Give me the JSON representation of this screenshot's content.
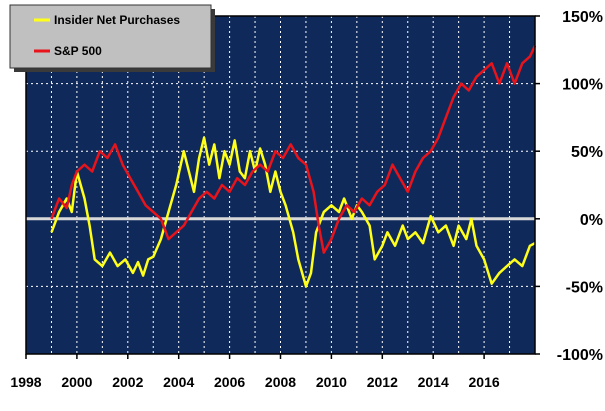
{
  "chart_data": {
    "type": "line",
    "title": "",
    "xlabel": "",
    "ylabel": "",
    "xlim": [
      1998,
      2018
    ],
    "ylim": [
      -100,
      150
    ],
    "x_ticks": [
      {
        "value": 1998,
        "label": "1998"
      },
      {
        "value": 2000,
        "label": "2000"
      },
      {
        "value": 2002,
        "label": "2002"
      },
      {
        "value": 2004,
        "label": "2004"
      },
      {
        "value": 2006,
        "label": "2006"
      },
      {
        "value": 2008,
        "label": "2008"
      },
      {
        "value": 2010,
        "label": "2010"
      },
      {
        "value": 2012,
        "label": "2012"
      },
      {
        "value": 2014,
        "label": "2014"
      },
      {
        "value": 2016,
        "label": "2016"
      }
    ],
    "y_ticks": [
      {
        "value": 150,
        "label": "150%"
      },
      {
        "value": 100,
        "label": "100%"
      },
      {
        "value": 50,
        "label": "50%"
      },
      {
        "value": 0,
        "label": "0%"
      },
      {
        "value": -50,
        "label": "-50%"
      },
      {
        "value": -100,
        "label": "-100%"
      }
    ],
    "grid": true,
    "legend_position": "top-left",
    "series": [
      {
        "name": "Insider Net Purchases",
        "color": "#ffff1a",
        "points": [
          [
            1999.0,
            -10
          ],
          [
            1999.3,
            5
          ],
          [
            1999.6,
            15
          ],
          [
            1999.8,
            5
          ],
          [
            2000.0,
            35
          ],
          [
            2000.3,
            15
          ],
          [
            2000.5,
            -5
          ],
          [
            2000.7,
            -30
          ],
          [
            2001.0,
            -35
          ],
          [
            2001.3,
            -25
          ],
          [
            2001.6,
            -35
          ],
          [
            2001.9,
            -30
          ],
          [
            2002.2,
            -40
          ],
          [
            2002.4,
            -32
          ],
          [
            2002.6,
            -42
          ],
          [
            2002.8,
            -30
          ],
          [
            2003.0,
            -28
          ],
          [
            2003.3,
            -15
          ],
          [
            2003.6,
            5
          ],
          [
            2003.9,
            25
          ],
          [
            2004.2,
            50
          ],
          [
            2004.4,
            35
          ],
          [
            2004.6,
            20
          ],
          [
            2004.8,
            45
          ],
          [
            2005.0,
            60
          ],
          [
            2005.2,
            40
          ],
          [
            2005.4,
            55
          ],
          [
            2005.6,
            30
          ],
          [
            2005.8,
            50
          ],
          [
            2006.0,
            40
          ],
          [
            2006.2,
            58
          ],
          [
            2006.4,
            35
          ],
          [
            2006.6,
            30
          ],
          [
            2006.8,
            50
          ],
          [
            2007.0,
            35
          ],
          [
            2007.2,
            52
          ],
          [
            2007.4,
            40
          ],
          [
            2007.6,
            20
          ],
          [
            2007.8,
            35
          ],
          [
            2008.0,
            20
          ],
          [
            2008.2,
            10
          ],
          [
            2008.5,
            -10
          ],
          [
            2008.7,
            -30
          ],
          [
            2009.0,
            -50
          ],
          [
            2009.2,
            -40
          ],
          [
            2009.4,
            -10
          ],
          [
            2009.7,
            5
          ],
          [
            2010.0,
            10
          ],
          [
            2010.3,
            5
          ],
          [
            2010.5,
            15
          ],
          [
            2010.8,
            0
          ],
          [
            2011.0,
            10
          ],
          [
            2011.2,
            5
          ],
          [
            2011.5,
            -5
          ],
          [
            2011.7,
            -30
          ],
          [
            2012.0,
            -20
          ],
          [
            2012.2,
            -10
          ],
          [
            2012.5,
            -20
          ],
          [
            2012.8,
            -5
          ],
          [
            2013.0,
            -15
          ],
          [
            2013.3,
            -10
          ],
          [
            2013.6,
            -18
          ],
          [
            2013.9,
            2
          ],
          [
            2014.2,
            -10
          ],
          [
            2014.5,
            -5
          ],
          [
            2014.8,
            -20
          ],
          [
            2015.0,
            -5
          ],
          [
            2015.3,
            -15
          ],
          [
            2015.5,
            0
          ],
          [
            2015.7,
            -20
          ],
          [
            2016.0,
            -30
          ],
          [
            2016.3,
            -48
          ],
          [
            2016.6,
            -40
          ],
          [
            2016.9,
            -35
          ],
          [
            2017.2,
            -30
          ],
          [
            2017.5,
            -35
          ],
          [
            2017.8,
            -20
          ],
          [
            2018.0,
            -18
          ]
        ]
      },
      {
        "name": "S&P 500",
        "color": "#e8131b",
        "points": [
          [
            1999.0,
            0
          ],
          [
            1999.3,
            15
          ],
          [
            1999.6,
            8
          ],
          [
            1999.8,
            25
          ],
          [
            2000.0,
            35
          ],
          [
            2000.3,
            40
          ],
          [
            2000.6,
            35
          ],
          [
            2000.9,
            50
          ],
          [
            2001.2,
            45
          ],
          [
            2001.5,
            55
          ],
          [
            2001.8,
            40
          ],
          [
            2002.1,
            30
          ],
          [
            2002.4,
            20
          ],
          [
            2002.7,
            10
          ],
          [
            2003.0,
            5
          ],
          [
            2003.3,
            0
          ],
          [
            2003.6,
            -15
          ],
          [
            2003.9,
            -10
          ],
          [
            2004.2,
            -5
          ],
          [
            2004.5,
            5
          ],
          [
            2004.8,
            15
          ],
          [
            2005.1,
            20
          ],
          [
            2005.4,
            15
          ],
          [
            2005.7,
            25
          ],
          [
            2006.0,
            20
          ],
          [
            2006.3,
            30
          ],
          [
            2006.6,
            25
          ],
          [
            2006.9,
            35
          ],
          [
            2007.2,
            40
          ],
          [
            2007.5,
            35
          ],
          [
            2007.8,
            50
          ],
          [
            2008.1,
            45
          ],
          [
            2008.4,
            55
          ],
          [
            2008.7,
            45
          ],
          [
            2009.0,
            40
          ],
          [
            2009.3,
            20
          ],
          [
            2009.5,
            -5
          ],
          [
            2009.7,
            -25
          ],
          [
            2010.0,
            -15
          ],
          [
            2010.3,
            0
          ],
          [
            2010.6,
            10
          ],
          [
            2010.9,
            5
          ],
          [
            2011.2,
            15
          ],
          [
            2011.5,
            10
          ],
          [
            2011.8,
            20
          ],
          [
            2012.1,
            25
          ],
          [
            2012.4,
            40
          ],
          [
            2012.7,
            30
          ],
          [
            2013.0,
            20
          ],
          [
            2013.3,
            35
          ],
          [
            2013.6,
            45
          ],
          [
            2013.9,
            50
          ],
          [
            2014.2,
            60
          ],
          [
            2014.5,
            75
          ],
          [
            2014.8,
            90
          ],
          [
            2015.1,
            100
          ],
          [
            2015.4,
            95
          ],
          [
            2015.7,
            105
          ],
          [
            2016.0,
            110
          ],
          [
            2016.3,
            115
          ],
          [
            2016.6,
            100
          ],
          [
            2016.9,
            115
          ],
          [
            2017.2,
            100
          ],
          [
            2017.5,
            115
          ],
          [
            2017.8,
            120
          ],
          [
            2018.0,
            128
          ]
        ]
      }
    ]
  }
}
